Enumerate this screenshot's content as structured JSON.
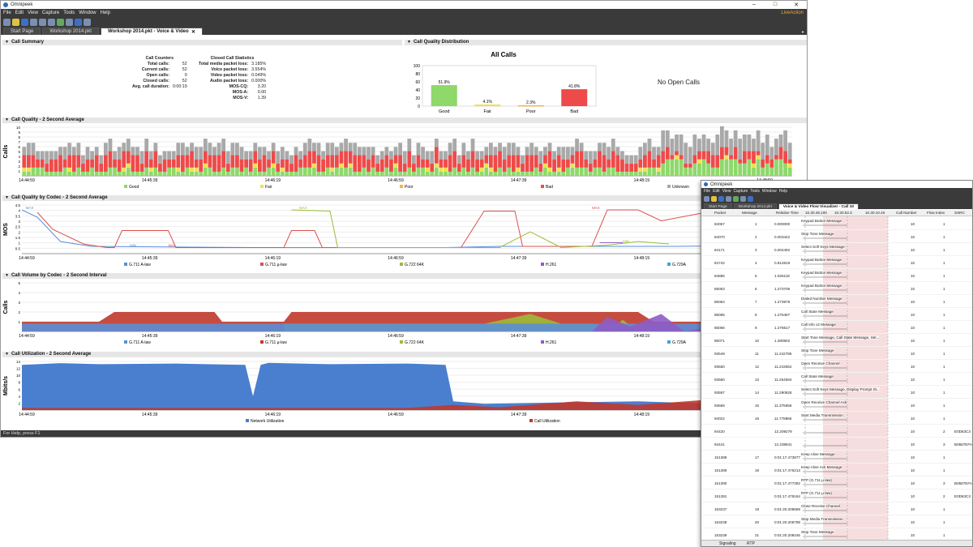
{
  "app": {
    "title": "Omnipeek",
    "brand": "LiveAction"
  },
  "menu": [
    "File",
    "Edit",
    "View",
    "Capture",
    "Tools",
    "Window",
    "Help"
  ],
  "tabs": [
    {
      "label": "Start Page",
      "active": false
    },
    {
      "label": "Workshop 2014.pkt",
      "active": false
    },
    {
      "label": "Workshop 2014.pkt - Voice & Video",
      "active": true
    }
  ],
  "call_summary": {
    "header": "Call Summary",
    "counters_title": "Call Counters",
    "counters": [
      {
        "label": "Total calls:",
        "value": "52"
      },
      {
        "label": "Current calls:",
        "value": "52"
      },
      {
        "label": "Open calls:",
        "value": "0"
      },
      {
        "label": "Closed calls:",
        "value": "52"
      },
      {
        "label": "Avg. call duration:",
        "value": "0:00:19"
      }
    ],
    "closed_title": "Closed Call Statistics",
    "closed": [
      {
        "label": "Total media packet loss:",
        "value": "3.185%"
      },
      {
        "label": "Voice packet loss:",
        "value": "3.554%"
      },
      {
        "label": "Video packet loss:",
        "value": "0.049%"
      },
      {
        "label": "Audio packet loss:",
        "value": "0.000%"
      },
      {
        "label": "MOS-CQ:",
        "value": "3.20"
      },
      {
        "label": "MOS-A:",
        "value": "0.00"
      },
      {
        "label": "MOS-V:",
        "value": "1.39"
      }
    ]
  },
  "quality_distribution": {
    "header": "Call Quality Distribution",
    "no_open": "No Open Calls"
  },
  "chart_data": [
    {
      "type": "bar",
      "title": "All Calls",
      "categories": [
        "Good",
        "Fair",
        "Poor",
        "Bad"
      ],
      "values": [
        51.9,
        4.1,
        2.3,
        41.8
      ],
      "value_labels": [
        "51.9%",
        "4.1%",
        "2.3%",
        "41.8%"
      ],
      "colors": [
        "#8fd86a",
        "#f1e04a",
        "#f2b54a",
        "#ee4a4a"
      ],
      "ylim": [
        0,
        100
      ],
      "yticks": [
        "100",
        "80",
        "60",
        "40",
        "20",
        "0"
      ]
    },
    {
      "type": "bar",
      "title": "Call Quality - 2 Second Average",
      "ylabel": "Calls",
      "yticks": [
        "10",
        "9",
        "8",
        "7",
        "6",
        "5",
        "4",
        "3",
        "2",
        "1"
      ],
      "ylim": [
        0,
        10
      ],
      "xticks": [
        "14:44:59",
        "14:45:39",
        "14:46:19",
        "14:46:59",
        "14:47:39",
        "14:48:19",
        "14:48:59"
      ],
      "series": [
        {
          "name": "Good",
          "color": "#8fd86a"
        },
        {
          "name": "Fair",
          "color": "#f1e04a"
        },
        {
          "name": "Poor",
          "color": "#f2b54a"
        },
        {
          "name": "Bad",
          "color": "#ee4a4a"
        },
        {
          "name": "Unknown",
          "color": "#a9a9a9"
        }
      ]
    },
    {
      "type": "line",
      "title": "Call Quality by Codec - 2 Second Average",
      "ylabel": "MOS",
      "yticks": [
        "4.5",
        "4",
        "3.5",
        "3",
        "2.5",
        "2",
        "1.5",
        "1",
        "0.5"
      ],
      "ylim": [
        0.5,
        4.5
      ],
      "xticks": [
        "14:44:59",
        "14:45:39",
        "14:46:19",
        "14:46:59",
        "14:47:39",
        "14:48:19",
        "14:48:59"
      ],
      "annotations": [
        "MAX",
        "MIN"
      ],
      "series": [
        {
          "name": "G.711 A-law",
          "color": "#5b8ed6"
        },
        {
          "name": "G.711 µ-law",
          "color": "#d9534f"
        },
        {
          "name": "G.722 64K",
          "color": "#9bbb3a"
        },
        {
          "name": "H.261",
          "color": "#8e5cc4"
        },
        {
          "name": "G.729A",
          "color": "#3aa6d6"
        }
      ]
    },
    {
      "type": "area",
      "title": "Call Volume by Codec - 2 Second Interval",
      "ylabel": "Calls",
      "yticks": [
        "5",
        "4",
        "3",
        "2",
        "1"
      ],
      "ylim": [
        0,
        5
      ],
      "xticks": [
        "14:44:59",
        "14:45:39",
        "14:46:19",
        "14:46:59",
        "14:47:39",
        "14:48:19",
        "14:48:59"
      ],
      "series": [
        {
          "name": "G.711 A-law",
          "color": "#5b8ed6"
        },
        {
          "name": "G.711 µ-law",
          "color": "#c0392b"
        },
        {
          "name": "G.722 64K",
          "color": "#9bbb3a"
        },
        {
          "name": "H.261",
          "color": "#8e5cc4"
        },
        {
          "name": "G.729A",
          "color": "#3aa6d6"
        }
      ]
    },
    {
      "type": "area",
      "title": "Call Utilization - 2 Second Average",
      "ylabel": "Mbits/s",
      "yticks": [
        "14",
        "12",
        "10",
        "8",
        "6",
        "4",
        "2"
      ],
      "ylim": [
        0,
        14
      ],
      "xticks": [
        "14:44:59",
        "14:45:39",
        "14:46:19",
        "14:46:59",
        "14:47:39",
        "14:48:19",
        "14:48:59"
      ],
      "series": [
        {
          "name": "Network Utilization",
          "color": "#4a7fd0"
        },
        {
          "name": "Call Utilization",
          "color": "#c0392b"
        }
      ]
    }
  ],
  "status": "For Help, press F1",
  "flow_window": {
    "title": "Omnipeek",
    "menu": [
      "File",
      "Edit",
      "View",
      "Capture",
      "Tools",
      "Window",
      "Help"
    ],
    "tabs": [
      "Start Page",
      "Workshop 2014.pkt",
      "Voice & Video Flow Visualizer - Call 10"
    ],
    "columns": [
      "Packet",
      "Message",
      "Relative Time",
      "10.30.48.100",
      "10.30.52.3",
      "10.30.10.40",
      "Call Number",
      "Flow Index",
      "SSRC"
    ],
    "rows": [
      {
        "packet": "84067",
        "msg": "1",
        "time": "0.000000",
        "text": "Keypad Button Message",
        "call": "10",
        "flow": "1",
        "ssrc": ""
      },
      {
        "packet": "84070",
        "msg": "2",
        "time": "0.003442",
        "text": "Stop Tone Message",
        "call": "10",
        "flow": "1",
        "ssrc": ""
      },
      {
        "packet": "84171",
        "msg": "3",
        "time": "0.004492",
        "text": "Select Soft Keys Message",
        "call": "10",
        "flow": "1",
        "ssrc": ""
      },
      {
        "packet": "84742",
        "msg": "4",
        "time": "0.814819",
        "text": "Keypad Button Message",
        "call": "10",
        "flow": "1",
        "ssrc": ""
      },
      {
        "packet": "84885",
        "msg": "5",
        "time": "1.026118",
        "text": "Keypad Button Message",
        "call": "10",
        "flow": "1",
        "ssrc": ""
      },
      {
        "packet": "85063",
        "msg": "6",
        "time": "1.273706",
        "text": "Keypad Button Message",
        "call": "10",
        "flow": "1",
        "ssrc": ""
      },
      {
        "packet": "85064",
        "msg": "7",
        "time": "1.273978",
        "text": "Dialed Number Message",
        "call": "10",
        "flow": "1",
        "ssrc": ""
      },
      {
        "packet": "85065",
        "msg": "8",
        "time": "1.276487",
        "text": "Call State Message",
        "call": "10",
        "flow": "1",
        "ssrc": ""
      },
      {
        "packet": "85066",
        "msg": "9",
        "time": "1.276617",
        "text": "Call Info v2 Message",
        "call": "10",
        "flow": "1",
        "ssrc": ""
      },
      {
        "packet": "85071",
        "msg": "10",
        "time": "1.280802",
        "text": "Start Tone Message, Call State Message, Sel...",
        "call": "10",
        "flow": "1",
        "ssrc": ""
      },
      {
        "packet": "93549",
        "msg": "11",
        "time": "11.242785",
        "text": "Stop Tone Message",
        "call": "10",
        "flow": "1",
        "ssrc": ""
      },
      {
        "packet": "93550",
        "msg": "12",
        "time": "11.243062",
        "text": "Open Receive Channel",
        "call": "10",
        "flow": "1",
        "ssrc": ""
      },
      {
        "packet": "93560",
        "msg": "13",
        "time": "11.254594",
        "text": "Call State Message",
        "call": "10",
        "flow": "1",
        "ssrc": ""
      },
      {
        "packet": "93597",
        "msg": "14",
        "time": "11.290828",
        "text": "Select Soft Keys Message, Display Prompt St...",
        "call": "10",
        "flow": "1",
        "ssrc": ""
      },
      {
        "packet": "93668",
        "msg": "15",
        "time": "11.375558",
        "text": "Open Receive Channel Ack",
        "call": "10",
        "flow": "1",
        "ssrc": ""
      },
      {
        "packet": "94022",
        "msg": "16",
        "time": "11.778866",
        "text": "Start Media Transmission",
        "call": "10",
        "flow": "1",
        "ssrc": ""
      },
      {
        "packet": "94420",
        "msg": "",
        "time": "12.209279",
        "text": "",
        "call": "10",
        "flow": "2",
        "ssrc": "E0D63C3"
      },
      {
        "packet": "94441",
        "msg": "",
        "time": "12.238841",
        "text": "",
        "call": "10",
        "flow": "3",
        "ssrc": "B0587EFA"
      },
      {
        "packet": "151388",
        "msg": "17",
        "time": "0:01:17.473977",
        "text": "Keep Alive Message",
        "call": "10",
        "flow": "1",
        "ssrc": ""
      },
      {
        "packet": "151389",
        "msg": "18",
        "time": "0:01:17.475213",
        "text": "Keep Alive Ack Message",
        "call": "10",
        "flow": "1",
        "ssrc": ""
      },
      {
        "packet": "151390",
        "msg": "",
        "time": "0:01:17.477392",
        "text": "RTP (G.711 µ-law)",
        "call": "10",
        "flow": "3",
        "ssrc": "B0587EFA"
      },
      {
        "packet": "151391",
        "msg": "",
        "time": "0:01:17.479164",
        "text": "RTP (G.711 µ-law)",
        "call": "10",
        "flow": "2",
        "ssrc": "E0D63C3"
      },
      {
        "packet": "153237",
        "msg": "19",
        "time": "0:01:20.208689",
        "text": "Close Receive Channel",
        "call": "10",
        "flow": "1",
        "ssrc": ""
      },
      {
        "packet": "153238",
        "msg": "20",
        "time": "0:01:20.206768",
        "text": "Stop Media Transmission",
        "call": "10",
        "flow": "1",
        "ssrc": ""
      },
      {
        "packet": "153239",
        "msg": "21",
        "time": "0:01:20.208245",
        "text": "Stop Tone Message",
        "call": "10",
        "flow": "1",
        "ssrc": ""
      }
    ],
    "bottom_tabs": [
      "Signaling",
      "RTP"
    ]
  }
}
